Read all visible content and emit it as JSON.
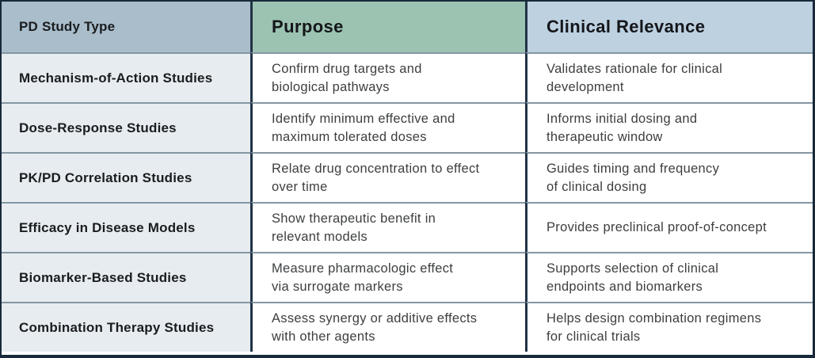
{
  "table": {
    "columns": [
      {
        "label": "PD Study Type",
        "bg": "#a9bdcb"
      },
      {
        "label": "Purpose",
        "bg": "#9cc3b2"
      },
      {
        "label": "Clinical Relevance",
        "bg": "#bdd1e1"
      }
    ],
    "rows": [
      {
        "study_type": "Mechanism-of-Action Studies",
        "purpose": "Confirm drug targets and\nbiological pathways",
        "clinical_relevance": "Validates rationale for clinical\ndevelopment"
      },
      {
        "study_type": "Dose-Response Studies",
        "purpose": "Identify minimum effective and\nmaximum tolerated doses",
        "clinical_relevance": "Informs initial dosing and\ntherapeutic window"
      },
      {
        "study_type": "PK/PD Correlation Studies",
        "purpose": "Relate drug concentration to effect\nover time",
        "clinical_relevance": "Guides timing and frequency\nof clinical dosing"
      },
      {
        "study_type": "Efficacy in Disease Models",
        "purpose": "Show therapeutic benefit in\nrelevant models",
        "clinical_relevance": "Provides preclinical proof-of-concept"
      },
      {
        "study_type": "Biomarker-Based Studies",
        "purpose": "Measure pharmacologic effect\nvia surrogate markers",
        "clinical_relevance": "Supports selection of clinical\nendpoints and biomarkers"
      },
      {
        "study_type": "Combination Therapy Studies",
        "purpose": "Assess synergy or additive effects\nwith other agents",
        "clinical_relevance": "Helps design combination regimens\nfor clinical trials"
      }
    ]
  },
  "colors": {
    "header_study_type_bg": "#a9bdcb",
    "header_purpose_bg": "#9cc3b2",
    "header_clinical_relevance_bg": "#bdd1e1",
    "row_label_bg": "#e7ecf0",
    "cell_bg": "#ffffff",
    "outer_border": "#17293a",
    "column_divider": "#203346",
    "row_divider": "#8496a3",
    "header_text": "#14161a",
    "body_text": "#3c3e40"
  }
}
